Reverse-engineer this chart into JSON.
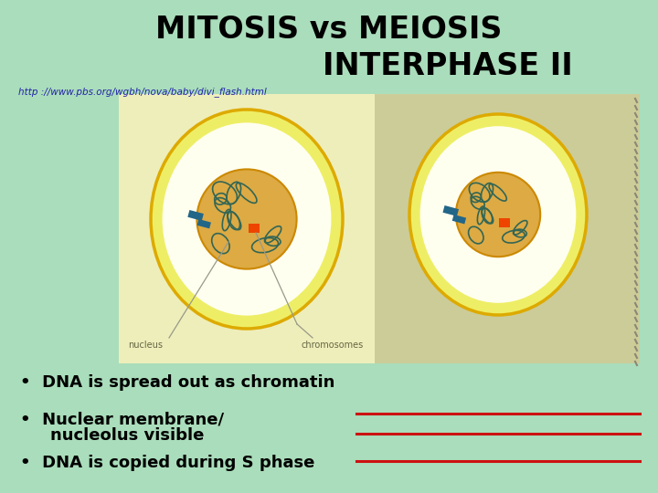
{
  "background_color": "#aaddbb",
  "title_line1": "MITOSIS vs MEIOSIS",
  "title_line2": "INTERPHASE II",
  "title_fontsize": 24,
  "url_text": "http ://www.pbs.org/wgbh/nova/baby/divi_flash.html",
  "url_color": "#2222aa",
  "url_fontsize": 7.5,
  "left_panel_bg": "#eeeebb",
  "right_panel_bg": "#cccc99",
  "cell_outer_fill": "#eeee66",
  "cell_outer_edge": "#ddaa00",
  "cell_inner_fill": "#ffffee",
  "nucleus_fill": "#ddaa44",
  "nucleus_edge": "#cc8800",
  "chromatin_color": "#336655",
  "nucleolus_color": "#ee4400",
  "centriole_color": "#226688",
  "label_chromosomes": "chromosomes",
  "label_nucleus": "nucleus",
  "red_line_color": "#cc1111",
  "bullet_fontsize": 13,
  "label_fontsize": 7
}
